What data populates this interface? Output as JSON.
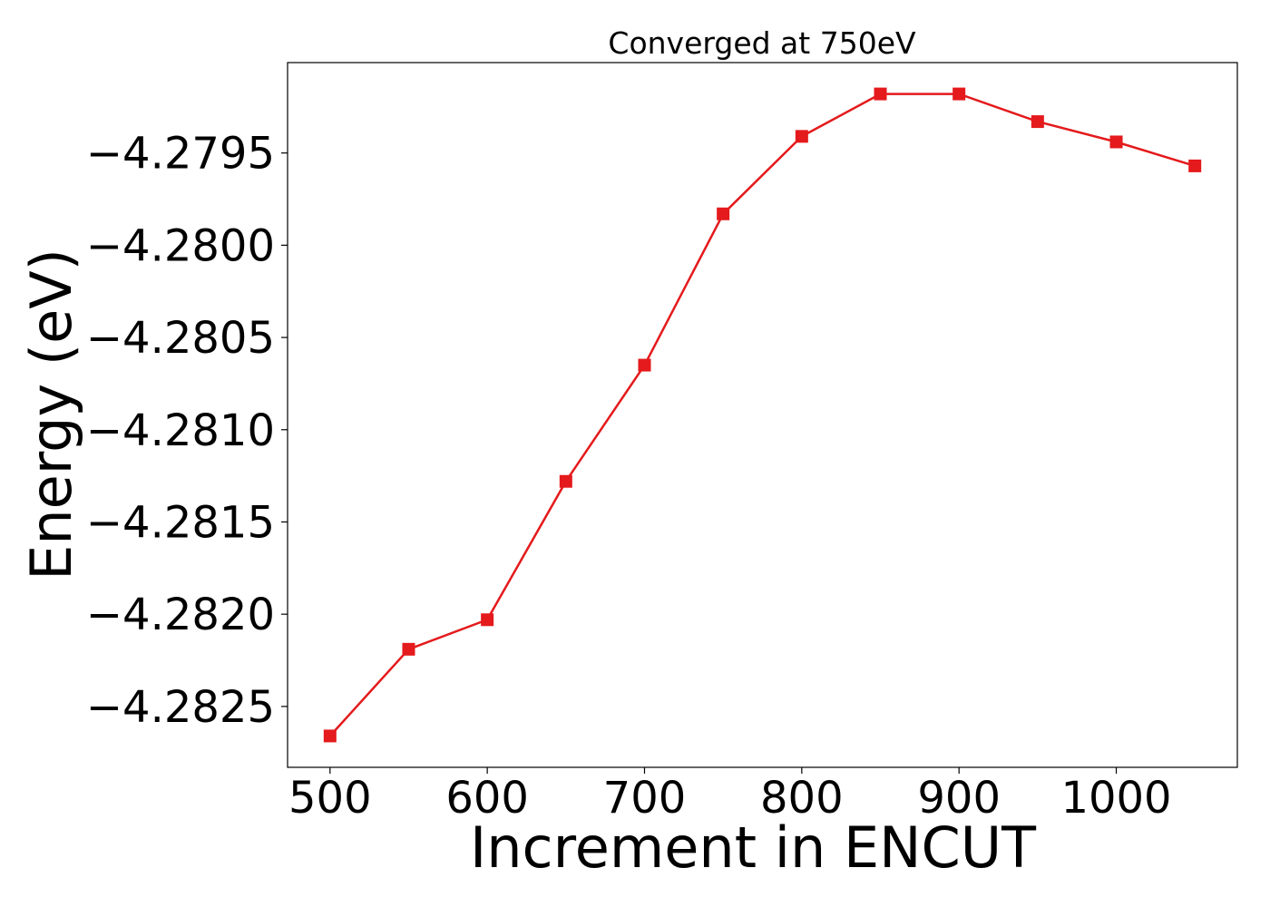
{
  "chart_data": {
    "type": "line",
    "title": "Converged at 750eV",
    "xlabel": "Increment in ENCUT",
    "ylabel": "Energy (eV)",
    "x": [
      500,
      550,
      600,
      650,
      700,
      750,
      800,
      850,
      900,
      950,
      1000,
      1050
    ],
    "series": [
      {
        "color": "#e41a1c",
        "marker": "square",
        "values": [
          -4.28266,
          -4.28219,
          -4.28203,
          -4.28128,
          -4.28065,
          -4.27983,
          -4.27941,
          -4.27918,
          -4.27918,
          -4.27933,
          -4.27944,
          -4.27957
        ]
      }
    ],
    "xlim": [
      473,
      1077
    ],
    "ylim": [
      -4.28283,
      -4.27901
    ],
    "xticks": [
      500,
      600,
      700,
      800,
      900,
      1000
    ],
    "xtick_labels": [
      "500",
      "600",
      "700",
      "800",
      "900",
      "1000"
    ],
    "yticks": [
      -4.2825,
      -4.282,
      -4.2815,
      -4.281,
      -4.2805,
      -4.28,
      -4.2795
    ],
    "ytick_labels": [
      "−4.2825",
      "−4.2820",
      "−4.2815",
      "−4.2810",
      "−4.2805",
      "−4.2800",
      "−4.2795"
    ],
    "grid": false,
    "legend": "none"
  }
}
